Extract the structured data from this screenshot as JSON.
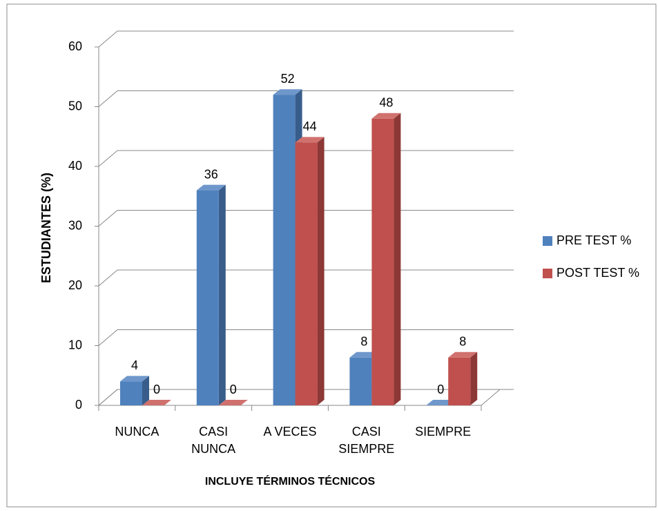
{
  "chart_data": {
    "type": "bar3d",
    "x_label": "INCLUYE TÉRMINOS TÉCNICOS",
    "y_label": "ESTUDIANTES (%)",
    "categories": [
      "NUNCA",
      "CASI NUNCA",
      "A VECES",
      "CASI SIEMPRE",
      "SIEMPRE"
    ],
    "series": [
      {
        "name": "PRE TEST %",
        "color": "#4f81bd",
        "side": "#385d8a",
        "top": "#6f97cb",
        "values": [
          4,
          36,
          52,
          8,
          0
        ]
      },
      {
        "name": "POST TEST %",
        "color": "#c0504d",
        "side": "#8c3836",
        "top": "#d0716e",
        "values": [
          0,
          0,
          44,
          48,
          8
        ]
      }
    ],
    "ylim": [
      0,
      60
    ],
    "yticks": [
      0,
      10,
      20,
      30,
      40,
      50,
      60
    ],
    "grid": true,
    "legend": "right"
  }
}
